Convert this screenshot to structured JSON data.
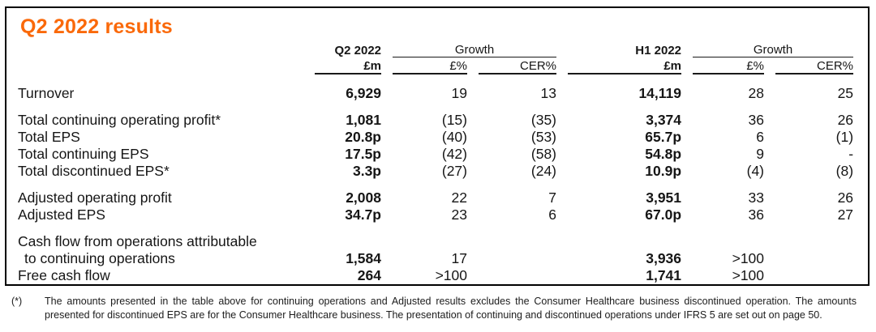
{
  "title": "Q2 2022 results",
  "accent_color": "#fa690a",
  "table": {
    "header": {
      "q2_period": "Q2 2022",
      "h1_period": "H1 2022",
      "growth_label": "Growth",
      "unit_label": "£m",
      "gbp_growth_label": "£%",
      "cer_growth_label": "CER%"
    },
    "rows": [
      {
        "label": "Turnover",
        "q2": "6,929",
        "q2_gbp": "19",
        "q2_cer": "13",
        "h1": "14,119",
        "h1_gbp": "28",
        "h1_cer": "25"
      },
      {
        "label": "Total continuing operating profit*",
        "q2": "1,081",
        "q2_gbp": "(15)",
        "q2_cer": "(35)",
        "h1": "3,374",
        "h1_gbp": "36",
        "h1_cer": "26"
      },
      {
        "label": "Total EPS",
        "q2": "20.8p",
        "q2_gbp": "(40)",
        "q2_cer": "(53)",
        "h1": "65.7p",
        "h1_gbp": "6",
        "h1_cer": "(1)"
      },
      {
        "label": "Total continuing EPS",
        "q2": "17.5p",
        "q2_gbp": "(42)",
        "q2_cer": "(58)",
        "h1": "54.8p",
        "h1_gbp": "9",
        "h1_cer": "-"
      },
      {
        "label": "Total discontinued EPS*",
        "q2": "3.3p",
        "q2_gbp": "(27)",
        "q2_cer": "(24)",
        "h1": "10.9p",
        "h1_gbp": "(4)",
        "h1_cer": "(8)"
      },
      {
        "label": "Adjusted operating profit",
        "q2": "2,008",
        "q2_gbp": "22",
        "q2_cer": "7",
        "h1": "3,951",
        "h1_gbp": "33",
        "h1_cer": "26"
      },
      {
        "label": "Adjusted EPS",
        "q2": "34.7p",
        "q2_gbp": "23",
        "q2_cer": "6",
        "h1": "67.0p",
        "h1_gbp": "36",
        "h1_cer": "27"
      },
      {
        "label_line1": "Cash flow from operations attributable",
        "label_line2": "to continuing operations",
        "q2": "1,584",
        "q2_gbp": "17",
        "q2_cer": "",
        "h1": "3,936",
        "h1_gbp": ">100",
        "h1_cer": ""
      },
      {
        "label": "Free cash flow",
        "q2": "264",
        "q2_gbp": ">100",
        "q2_cer": "",
        "h1": "1,741",
        "h1_gbp": ">100",
        "h1_cer": ""
      }
    ]
  },
  "footnote": {
    "marker": "(*)",
    "text": "The amounts presented in the table above for continuing operations and Adjusted results excludes the Consumer Healthcare business discontinued operation. The amounts presented for discontinued EPS are for the Consumer Healthcare business. The presentation of continuing and discontinued operations under IFRS 5 are set out on page 50."
  }
}
